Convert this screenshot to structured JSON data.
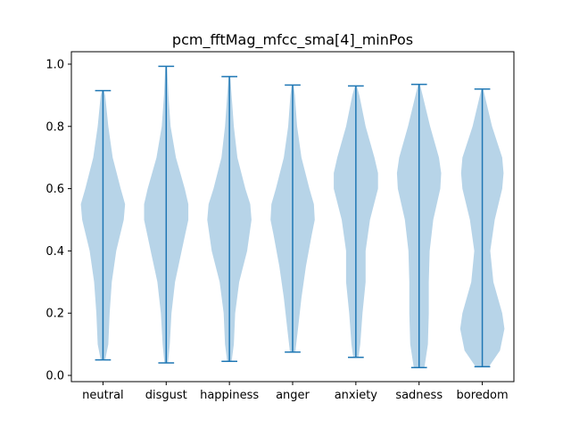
{
  "chart_data": {
    "type": "violin",
    "title": "pcm_fftMag_mfcc_sma[4]_minPos",
    "xlabel": "",
    "ylabel": "",
    "ylim": [
      -0.02,
      1.04
    ],
    "yticks": [
      0.0,
      0.2,
      0.4,
      0.6,
      0.8,
      1.0
    ],
    "ytick_labels": [
      "0.0",
      "0.2",
      "0.4",
      "0.6",
      "0.8",
      "1.0"
    ],
    "categories": [
      "neutral",
      "disgust",
      "happiness",
      "anger",
      "anxiety",
      "sadness",
      "boredom"
    ],
    "grid": false,
    "colors": {
      "body": "#b7d4e8",
      "line": "#1f77b4",
      "axis": "#000000"
    },
    "series": [
      {
        "category": "neutral",
        "min": 0.05,
        "max": 0.915,
        "density_y": [
          0.05,
          0.1,
          0.2,
          0.3,
          0.4,
          0.5,
          0.55,
          0.6,
          0.7,
          0.8,
          0.9,
          0.915
        ],
        "density_w": [
          0.05,
          0.12,
          0.15,
          0.2,
          0.3,
          0.47,
          0.5,
          0.4,
          0.22,
          0.12,
          0.05,
          0.02
        ]
      },
      {
        "category": "disgust",
        "min": 0.04,
        "max": 0.993,
        "density_y": [
          0.04,
          0.1,
          0.2,
          0.3,
          0.4,
          0.5,
          0.55,
          0.6,
          0.7,
          0.8,
          0.9,
          0.993
        ],
        "density_w": [
          0.04,
          0.08,
          0.12,
          0.2,
          0.35,
          0.5,
          0.5,
          0.42,
          0.22,
          0.1,
          0.05,
          0.02
        ]
      },
      {
        "category": "happiness",
        "min": 0.045,
        "max": 0.96,
        "density_y": [
          0.045,
          0.1,
          0.2,
          0.3,
          0.4,
          0.5,
          0.55,
          0.6,
          0.7,
          0.8,
          0.9,
          0.96
        ],
        "density_w": [
          0.05,
          0.1,
          0.13,
          0.22,
          0.4,
          0.5,
          0.47,
          0.36,
          0.18,
          0.1,
          0.05,
          0.02
        ]
      },
      {
        "category": "anger",
        "min": 0.075,
        "max": 0.933,
        "density_y": [
          0.075,
          0.15,
          0.25,
          0.35,
          0.45,
          0.5,
          0.55,
          0.6,
          0.7,
          0.8,
          0.9,
          0.933
        ],
        "density_w": [
          0.06,
          0.12,
          0.2,
          0.3,
          0.43,
          0.5,
          0.48,
          0.38,
          0.2,
          0.1,
          0.05,
          0.02
        ]
      },
      {
        "category": "anxiety",
        "min": 0.058,
        "max": 0.93,
        "density_y": [
          0.058,
          0.1,
          0.2,
          0.3,
          0.4,
          0.5,
          0.6,
          0.65,
          0.7,
          0.8,
          0.9,
          0.93
        ],
        "density_w": [
          0.06,
          0.1,
          0.15,
          0.22,
          0.22,
          0.32,
          0.5,
          0.5,
          0.42,
          0.22,
          0.08,
          0.02
        ]
      },
      {
        "category": "sadness",
        "min": 0.025,
        "max": 0.935,
        "density_y": [
          0.025,
          0.1,
          0.2,
          0.3,
          0.4,
          0.5,
          0.6,
          0.65,
          0.7,
          0.8,
          0.9,
          0.935
        ],
        "density_w": [
          0.12,
          0.2,
          0.22,
          0.22,
          0.24,
          0.32,
          0.48,
          0.5,
          0.45,
          0.25,
          0.08,
          0.02
        ]
      },
      {
        "category": "boredom",
        "min": 0.028,
        "max": 0.92,
        "density_y": [
          0.028,
          0.08,
          0.15,
          0.2,
          0.3,
          0.4,
          0.5,
          0.6,
          0.65,
          0.7,
          0.8,
          0.92
        ],
        "density_w": [
          0.15,
          0.4,
          0.5,
          0.45,
          0.25,
          0.18,
          0.28,
          0.45,
          0.48,
          0.45,
          0.22,
          0.02
        ]
      }
    ]
  }
}
